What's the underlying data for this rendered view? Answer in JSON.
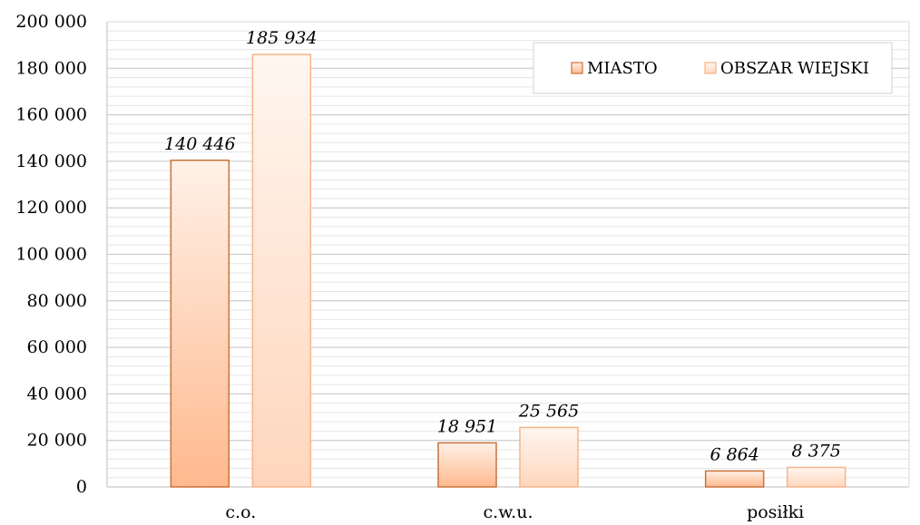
{
  "chart_data": {
    "type": "bar",
    "categories": [
      "c.o.",
      "c.w.u.",
      "posiłki"
    ],
    "series": [
      {
        "name": "MIASTO",
        "values": [
          140446,
          18951,
          6864
        ],
        "labels": [
          "140 446",
          "18 951",
          "6 864"
        ],
        "color": "#ffbe96",
        "stroke": "#c7743a"
      },
      {
        "name": "OBSZAR WIEJSKI",
        "values": [
          185934,
          25565,
          8375
        ],
        "labels": [
          "185 934",
          "25 565",
          "8 375"
        ],
        "color": "#ffe3d0",
        "stroke": "#f7b48a"
      }
    ],
    "ylim": [
      0,
      200000
    ],
    "yticks": [
      0,
      20000,
      40000,
      60000,
      80000,
      100000,
      120000,
      140000,
      160000,
      180000,
      200000
    ],
    "ytick_labels": [
      "0",
      "20 000",
      "40 000",
      "60 000",
      "80 000",
      "100 000",
      "120 000",
      "140 000",
      "160 000",
      "180 000",
      "200 000"
    ],
    "grid": true,
    "legend_position": "top-right"
  }
}
